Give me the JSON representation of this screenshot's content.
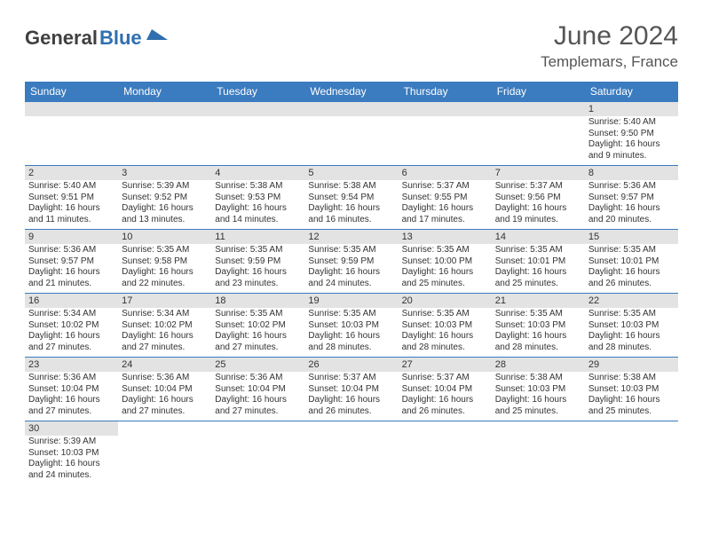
{
  "logo": {
    "text_dark": "General",
    "text_blue": "Blue"
  },
  "header": {
    "title": "June 2024",
    "location": "Templemars, France"
  },
  "colors": {
    "header_bg": "#3b7bbf",
    "header_text": "#ffffff",
    "daybar_bg": "#e3e3e3",
    "border": "#3b7bbf",
    "logo_dark": "#404040",
    "logo_blue": "#2f6fb0",
    "title_gray": "#555555"
  },
  "day_headers": [
    "Sunday",
    "Monday",
    "Tuesday",
    "Wednesday",
    "Thursday",
    "Friday",
    "Saturday"
  ],
  "weeks": [
    [
      null,
      null,
      null,
      null,
      null,
      null,
      {
        "n": "1",
        "sr": "Sunrise: 5:40 AM",
        "ss": "Sunset: 9:50 PM",
        "dl": "Daylight: 16 hours and 9 minutes."
      }
    ],
    [
      {
        "n": "2",
        "sr": "Sunrise: 5:40 AM",
        "ss": "Sunset: 9:51 PM",
        "dl": "Daylight: 16 hours and 11 minutes."
      },
      {
        "n": "3",
        "sr": "Sunrise: 5:39 AM",
        "ss": "Sunset: 9:52 PM",
        "dl": "Daylight: 16 hours and 13 minutes."
      },
      {
        "n": "4",
        "sr": "Sunrise: 5:38 AM",
        "ss": "Sunset: 9:53 PM",
        "dl": "Daylight: 16 hours and 14 minutes."
      },
      {
        "n": "5",
        "sr": "Sunrise: 5:38 AM",
        "ss": "Sunset: 9:54 PM",
        "dl": "Daylight: 16 hours and 16 minutes."
      },
      {
        "n": "6",
        "sr": "Sunrise: 5:37 AM",
        "ss": "Sunset: 9:55 PM",
        "dl": "Daylight: 16 hours and 17 minutes."
      },
      {
        "n": "7",
        "sr": "Sunrise: 5:37 AM",
        "ss": "Sunset: 9:56 PM",
        "dl": "Daylight: 16 hours and 19 minutes."
      },
      {
        "n": "8",
        "sr": "Sunrise: 5:36 AM",
        "ss": "Sunset: 9:57 PM",
        "dl": "Daylight: 16 hours and 20 minutes."
      }
    ],
    [
      {
        "n": "9",
        "sr": "Sunrise: 5:36 AM",
        "ss": "Sunset: 9:57 PM",
        "dl": "Daylight: 16 hours and 21 minutes."
      },
      {
        "n": "10",
        "sr": "Sunrise: 5:35 AM",
        "ss": "Sunset: 9:58 PM",
        "dl": "Daylight: 16 hours and 22 minutes."
      },
      {
        "n": "11",
        "sr": "Sunrise: 5:35 AM",
        "ss": "Sunset: 9:59 PM",
        "dl": "Daylight: 16 hours and 23 minutes."
      },
      {
        "n": "12",
        "sr": "Sunrise: 5:35 AM",
        "ss": "Sunset: 9:59 PM",
        "dl": "Daylight: 16 hours and 24 minutes."
      },
      {
        "n": "13",
        "sr": "Sunrise: 5:35 AM",
        "ss": "Sunset: 10:00 PM",
        "dl": "Daylight: 16 hours and 25 minutes."
      },
      {
        "n": "14",
        "sr": "Sunrise: 5:35 AM",
        "ss": "Sunset: 10:01 PM",
        "dl": "Daylight: 16 hours and 25 minutes."
      },
      {
        "n": "15",
        "sr": "Sunrise: 5:35 AM",
        "ss": "Sunset: 10:01 PM",
        "dl": "Daylight: 16 hours and 26 minutes."
      }
    ],
    [
      {
        "n": "16",
        "sr": "Sunrise: 5:34 AM",
        "ss": "Sunset: 10:02 PM",
        "dl": "Daylight: 16 hours and 27 minutes."
      },
      {
        "n": "17",
        "sr": "Sunrise: 5:34 AM",
        "ss": "Sunset: 10:02 PM",
        "dl": "Daylight: 16 hours and 27 minutes."
      },
      {
        "n": "18",
        "sr": "Sunrise: 5:35 AM",
        "ss": "Sunset: 10:02 PM",
        "dl": "Daylight: 16 hours and 27 minutes."
      },
      {
        "n": "19",
        "sr": "Sunrise: 5:35 AM",
        "ss": "Sunset: 10:03 PM",
        "dl": "Daylight: 16 hours and 28 minutes."
      },
      {
        "n": "20",
        "sr": "Sunrise: 5:35 AM",
        "ss": "Sunset: 10:03 PM",
        "dl": "Daylight: 16 hours and 28 minutes."
      },
      {
        "n": "21",
        "sr": "Sunrise: 5:35 AM",
        "ss": "Sunset: 10:03 PM",
        "dl": "Daylight: 16 hours and 28 minutes."
      },
      {
        "n": "22",
        "sr": "Sunrise: 5:35 AM",
        "ss": "Sunset: 10:03 PM",
        "dl": "Daylight: 16 hours and 28 minutes."
      }
    ],
    [
      {
        "n": "23",
        "sr": "Sunrise: 5:36 AM",
        "ss": "Sunset: 10:04 PM",
        "dl": "Daylight: 16 hours and 27 minutes."
      },
      {
        "n": "24",
        "sr": "Sunrise: 5:36 AM",
        "ss": "Sunset: 10:04 PM",
        "dl": "Daylight: 16 hours and 27 minutes."
      },
      {
        "n": "25",
        "sr": "Sunrise: 5:36 AM",
        "ss": "Sunset: 10:04 PM",
        "dl": "Daylight: 16 hours and 27 minutes."
      },
      {
        "n": "26",
        "sr": "Sunrise: 5:37 AM",
        "ss": "Sunset: 10:04 PM",
        "dl": "Daylight: 16 hours and 26 minutes."
      },
      {
        "n": "27",
        "sr": "Sunrise: 5:37 AM",
        "ss": "Sunset: 10:04 PM",
        "dl": "Daylight: 16 hours and 26 minutes."
      },
      {
        "n": "28",
        "sr": "Sunrise: 5:38 AM",
        "ss": "Sunset: 10:03 PM",
        "dl": "Daylight: 16 hours and 25 minutes."
      },
      {
        "n": "29",
        "sr": "Sunrise: 5:38 AM",
        "ss": "Sunset: 10:03 PM",
        "dl": "Daylight: 16 hours and 25 minutes."
      }
    ],
    [
      {
        "n": "30",
        "sr": "Sunrise: 5:39 AM",
        "ss": "Sunset: 10:03 PM",
        "dl": "Daylight: 16 hours and 24 minutes."
      },
      null,
      null,
      null,
      null,
      null,
      null
    ]
  ]
}
